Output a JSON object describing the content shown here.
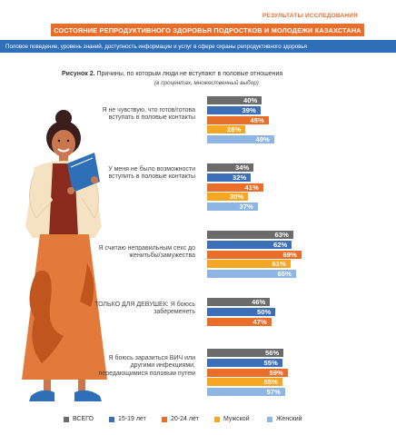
{
  "header": {
    "top_label": "РЕЗУЛЬТАТЫ ИССЛЕДОВАНИЯ",
    "title": "СОСТОЯНИЕ РЕПРОДУКТИВНОГО ЗДОРОВЬЯ ПОДРОСТКОВ И МОЛОДЕЖИ КАЗАХСТАНА",
    "subtitle": "Половое поведение, уровень знаний, доступность информации и услуг в сфере охраны  репродуктивного здоровья"
  },
  "figure": {
    "number": "Рисунок 2.",
    "caption": " Причины, по которым люди не вступают в половые отношения",
    "note": "(в процентах, множественный выбор)"
  },
  "colors": {
    "orange": "#e96e2a",
    "blue": "#2f6fb7",
    "series": [
      "#6b6b6b",
      "#3c6fb7",
      "#e96e2a",
      "#f5a623",
      "#8db6e2"
    ]
  },
  "chart_data": {
    "type": "bar",
    "orientation": "horizontal",
    "unit": "%",
    "categories": [
      "Я не чувствую, что готов/готова вступать в половые контакты",
      "У меня не было возможности вступить в половые контакты",
      "Я считаю неправильным секс до женитьбы/замужества",
      "ТОЛЬКО ДЛЯ ДЕВУШЕК: Я боюсь забеременеть",
      "Я боюсь заразиться ВИЧ или другими инфекциями, передающимися половым путем"
    ],
    "series": [
      {
        "name": "ВСЕГО",
        "values": [
          40,
          34,
          63,
          46,
          56
        ]
      },
      {
        "name": "15-19 лет",
        "values": [
          39,
          32,
          62,
          50,
          55
        ]
      },
      {
        "name": "20-24 лет",
        "values": [
          45,
          41,
          69,
          47,
          59
        ]
      },
      {
        "name": "Мужской",
        "values": [
          28,
          30,
          61,
          null,
          55
        ]
      },
      {
        "name": "Женский",
        "values": [
          49,
          37,
          65,
          null,
          57
        ]
      }
    ],
    "value_labels": [
      [
        "40%",
        "39%",
        "45%",
        "28%",
        "49%"
      ],
      [
        "34%",
        "32%",
        "41%",
        "30%",
        "37%"
      ],
      [
        "63%",
        "62%",
        "69%",
        "61%",
        "65%"
      ],
      [
        "46%",
        "50%",
        "47%"
      ],
      [
        "56%",
        "55%",
        "59%",
        "55%",
        "57%"
      ]
    ],
    "legend_position": "bottom",
    "grid": false
  }
}
